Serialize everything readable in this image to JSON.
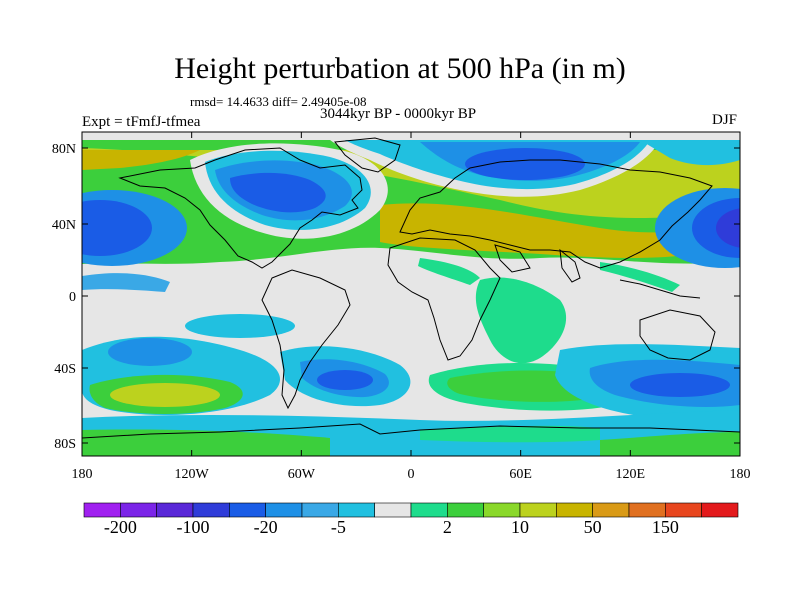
{
  "title": "Height perturbation at 500 hPa (in m)",
  "stats": "rmsd= 14.4633 diff= 2.49405e-08",
  "period": "3044kyr BP - 0000kyr BP",
  "experiment": "Expt = tFmfJ-tfmea",
  "season": "DJF",
  "map": {
    "lat_ticks": [
      "80N",
      "40N",
      "0",
      "40S",
      "80S"
    ],
    "lon_ticks": [
      "180",
      "120W",
      "60W",
      "0",
      "60E",
      "120E",
      "180"
    ]
  },
  "colorbar": {
    "colors": [
      "#a020f0",
      "#7b24e8",
      "#5a28d8",
      "#2f3cd9",
      "#1a5ce6",
      "#1e90e6",
      "#3aa8e6",
      "#21c0e0",
      "#e6e6e6",
      "#1edc8c",
      "#3ccf3c",
      "#8ad82a",
      "#bcd21e",
      "#c8b400",
      "#d99a16",
      "#e07020",
      "#e8461e",
      "#e31a1c"
    ],
    "labels": [
      "-200",
      "-100",
      "-20",
      "-5",
      "2",
      "10",
      "50",
      "150"
    ]
  }
}
